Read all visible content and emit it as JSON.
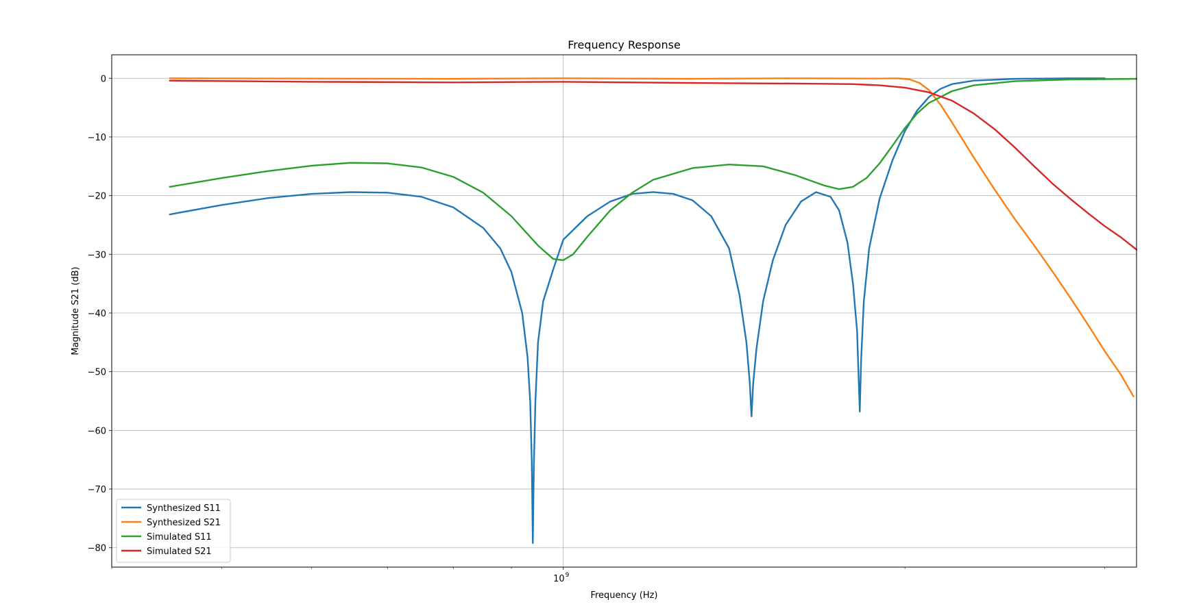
{
  "chart_data": {
    "type": "line",
    "title": "Frequency Response",
    "xlabel": "Frequency (Hz)",
    "ylabel": "Magnitude S21 (dB)",
    "x_scale": "log",
    "xlim": [
      400000000.0,
      3200000000.0
    ],
    "ylim": [
      -83.3,
      4
    ],
    "y_ticks": [
      0,
      -10,
      -20,
      -30,
      -40,
      -50,
      -60,
      -70,
      -80
    ],
    "y_tick_labels": [
      "0",
      "−10",
      "−20",
      "−30",
      "−40",
      "−50",
      "−60",
      "−70",
      "−80"
    ],
    "x_major_ticks": [
      1000000000
    ],
    "x_major_tick_labels": [
      "10^9"
    ],
    "x_minor_ticks": [
      400000000.0,
      500000000.0,
      600000000.0,
      700000000.0,
      800000000.0,
      900000000.0,
      2000000000.0,
      3000000000.0
    ],
    "grid": true,
    "legend_position": "lower-left",
    "series": [
      {
        "name": "Synthesized S11",
        "color": "#1f77b4",
        "points": [
          [
            450000000.0,
            -23.2
          ],
          [
            500000000.0,
            -21.6
          ],
          [
            550000000.0,
            -20.4
          ],
          [
            600000000.0,
            -19.7
          ],
          [
            650000000.0,
            -19.4
          ],
          [
            700000000.0,
            -19.5
          ],
          [
            750000000.0,
            -20.2
          ],
          [
            800000000.0,
            -22.0
          ],
          [
            850000000.0,
            -25.5
          ],
          [
            880000000.0,
            -29.0
          ],
          [
            900000000.0,
            -33.0
          ],
          [
            920000000.0,
            -40.0
          ],
          [
            930000000.0,
            -47.5
          ],
          [
            935000000.0,
            -55.0
          ],
          [
            938000000.0,
            -65.0
          ],
          [
            940000000.0,
            -79.2
          ],
          [
            942000000.0,
            -66.0
          ],
          [
            945000000.0,
            -55.0
          ],
          [
            950000000.0,
            -45.0
          ],
          [
            960000000.0,
            -38.0
          ],
          [
            980000000.0,
            -32.5
          ],
          [
            1000000000.0,
            -27.5
          ],
          [
            1050000000.0,
            -23.5
          ],
          [
            1100000000.0,
            -21.0
          ],
          [
            1150000000.0,
            -19.7
          ],
          [
            1200000000.0,
            -19.4
          ],
          [
            1250000000.0,
            -19.7
          ],
          [
            1300000000.0,
            -20.8
          ],
          [
            1350000000.0,
            -23.5
          ],
          [
            1400000000.0,
            -29.0
          ],
          [
            1430000000.0,
            -37.0
          ],
          [
            1450000000.0,
            -45.0
          ],
          [
            1460000000.0,
            -52.0
          ],
          [
            1465000000.0,
            -57.6
          ],
          [
            1470000000.0,
            -52.0
          ],
          [
            1480000000.0,
            -46.0
          ],
          [
            1500000000.0,
            -38.0
          ],
          [
            1530000000.0,
            -31.0
          ],
          [
            1570000000.0,
            -25.0
          ],
          [
            1620000000.0,
            -21.0
          ],
          [
            1670000000.0,
            -19.4
          ],
          [
            1720000000.0,
            -20.2
          ],
          [
            1750000000.0,
            -22.5
          ],
          [
            1780000000.0,
            -28.0
          ],
          [
            1800000000.0,
            -35.0
          ],
          [
            1815000000.0,
            -43.0
          ],
          [
            1820000000.0,
            -50.0
          ],
          [
            1825000000.0,
            -56.8
          ],
          [
            1830000000.0,
            -48.0
          ],
          [
            1840000000.0,
            -38.0
          ],
          [
            1860000000.0,
            -29.0
          ],
          [
            1900000000.0,
            -20.5
          ],
          [
            1950000000.0,
            -14.0
          ],
          [
            2000000000.0,
            -9.0
          ],
          [
            2050000000.0,
            -5.5
          ],
          [
            2100000000.0,
            -3.2
          ],
          [
            2150000000.0,
            -1.8
          ],
          [
            2200000000.0,
            -1.0
          ],
          [
            2300000000.0,
            -0.4
          ],
          [
            2500000000.0,
            -0.1
          ],
          [
            2800000000.0,
            0.0
          ],
          [
            3000000000.0,
            0.0
          ]
        ]
      },
      {
        "name": "Synthesized S21",
        "color": "#ff7f0e",
        "points": [
          [
            450000000.0,
            0.0
          ],
          [
            600000000.0,
            -0.05
          ],
          [
            800000000.0,
            -0.1
          ],
          [
            1000000000.0,
            0.0
          ],
          [
            1300000000.0,
            -0.1
          ],
          [
            1600000000.0,
            0.0
          ],
          [
            1900000000.0,
            -0.05
          ],
          [
            1970000000.0,
            0.0
          ],
          [
            2020000000.0,
            -0.2
          ],
          [
            2060000000.0,
            -0.8
          ],
          [
            2100000000.0,
            -2.0
          ],
          [
            2150000000.0,
            -4.5
          ],
          [
            2200000000.0,
            -7.5
          ],
          [
            2300000000.0,
            -13.5
          ],
          [
            2400000000.0,
            -19.0
          ],
          [
            2500000000.0,
            -24.0
          ],
          [
            2600000000.0,
            -28.5
          ],
          [
            2700000000.0,
            -33.0
          ],
          [
            2800000000.0,
            -37.5
          ],
          [
            2900000000.0,
            -42.0
          ],
          [
            3000000000.0,
            -46.5
          ],
          [
            3100000000.0,
            -50.5
          ],
          [
            3180000000.0,
            -54.2
          ]
        ]
      },
      {
        "name": "Simulated S11",
        "color": "#2ca02c",
        "points": [
          [
            450000000.0,
            -18.5
          ],
          [
            500000000.0,
            -17.0
          ],
          [
            550000000.0,
            -15.8
          ],
          [
            600000000.0,
            -14.9
          ],
          [
            650000000.0,
            -14.4
          ],
          [
            700000000.0,
            -14.5
          ],
          [
            750000000.0,
            -15.2
          ],
          [
            800000000.0,
            -16.8
          ],
          [
            850000000.0,
            -19.5
          ],
          [
            900000000.0,
            -23.5
          ],
          [
            950000000.0,
            -28.5
          ],
          [
            980000000.0,
            -30.8
          ],
          [
            1000000000.0,
            -31.0
          ],
          [
            1020000000.0,
            -30.0
          ],
          [
            1050000000.0,
            -27.0
          ],
          [
            1100000000.0,
            -22.5
          ],
          [
            1150000000.0,
            -19.5
          ],
          [
            1200000000.0,
            -17.3
          ],
          [
            1300000000.0,
            -15.3
          ],
          [
            1400000000.0,
            -14.7
          ],
          [
            1500000000.0,
            -15.0
          ],
          [
            1600000000.0,
            -16.5
          ],
          [
            1700000000.0,
            -18.3
          ],
          [
            1750000000.0,
            -18.9
          ],
          [
            1800000000.0,
            -18.5
          ],
          [
            1850000000.0,
            -17.0
          ],
          [
            1900000000.0,
            -14.5
          ],
          [
            1950000000.0,
            -11.5
          ],
          [
            2000000000.0,
            -8.5
          ],
          [
            2050000000.0,
            -6.0
          ],
          [
            2100000000.0,
            -4.2
          ],
          [
            2200000000.0,
            -2.2
          ],
          [
            2300000000.0,
            -1.2
          ],
          [
            2500000000.0,
            -0.5
          ],
          [
            2800000000.0,
            -0.2
          ],
          [
            3200000000.0,
            -0.1
          ]
        ]
      },
      {
        "name": "Simulated S21",
        "color": "#d62728",
        "points": [
          [
            450000000.0,
            -0.4
          ],
          [
            600000000.0,
            -0.6
          ],
          [
            800000000.0,
            -0.7
          ],
          [
            1000000000.0,
            -0.6
          ],
          [
            1300000000.0,
            -0.8
          ],
          [
            1600000000.0,
            -0.9
          ],
          [
            1800000000.0,
            -1.0
          ],
          [
            1900000000.0,
            -1.2
          ],
          [
            2000000000.0,
            -1.6
          ],
          [
            2100000000.0,
            -2.4
          ],
          [
            2200000000.0,
            -3.8
          ],
          [
            2300000000.0,
            -6.0
          ],
          [
            2400000000.0,
            -8.7
          ],
          [
            2500000000.0,
            -11.8
          ],
          [
            2600000000.0,
            -15.0
          ],
          [
            2700000000.0,
            -18.0
          ],
          [
            2800000000.0,
            -20.6
          ],
          [
            2900000000.0,
            -23.0
          ],
          [
            3000000000.0,
            -25.2
          ],
          [
            3100000000.0,
            -27.1
          ],
          [
            3200000000.0,
            -29.2
          ]
        ]
      }
    ]
  }
}
